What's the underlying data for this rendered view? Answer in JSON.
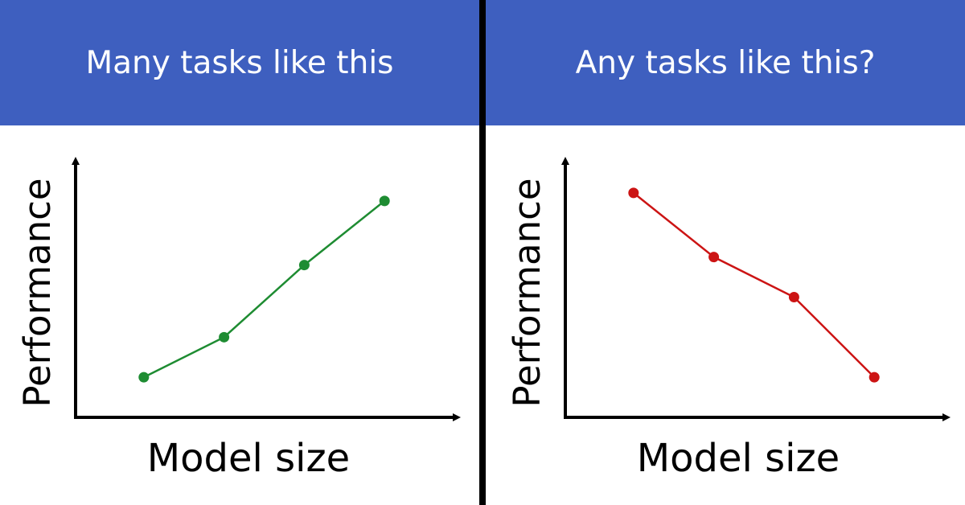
{
  "colors": {
    "banner": "#3e5fbf",
    "divider": "#000000"
  },
  "chart_data": [
    {
      "type": "line",
      "title": "Many tasks like this",
      "xlabel": "Model size",
      "ylabel": "Performance",
      "x": [
        1,
        2,
        3,
        4
      ],
      "series": [
        {
          "values": [
            1.0,
            2.0,
            3.8,
            5.4
          ],
          "color": "#1e8c32"
        }
      ],
      "xlim": [
        0.15,
        4.9
      ],
      "ylim": [
        0.0,
        6.4
      ],
      "grid": false
    },
    {
      "type": "line",
      "title": "Any tasks like this?",
      "xlabel": "Model size",
      "ylabel": "Performance",
      "x": [
        1,
        2,
        3,
        4
      ],
      "series": [
        {
          "values": [
            5.6,
            4.0,
            3.0,
            1.0
          ],
          "color": "#cc1414"
        }
      ],
      "xlim": [
        0.15,
        4.9
      ],
      "ylim": [
        0.0,
        6.4
      ],
      "grid": false
    }
  ]
}
